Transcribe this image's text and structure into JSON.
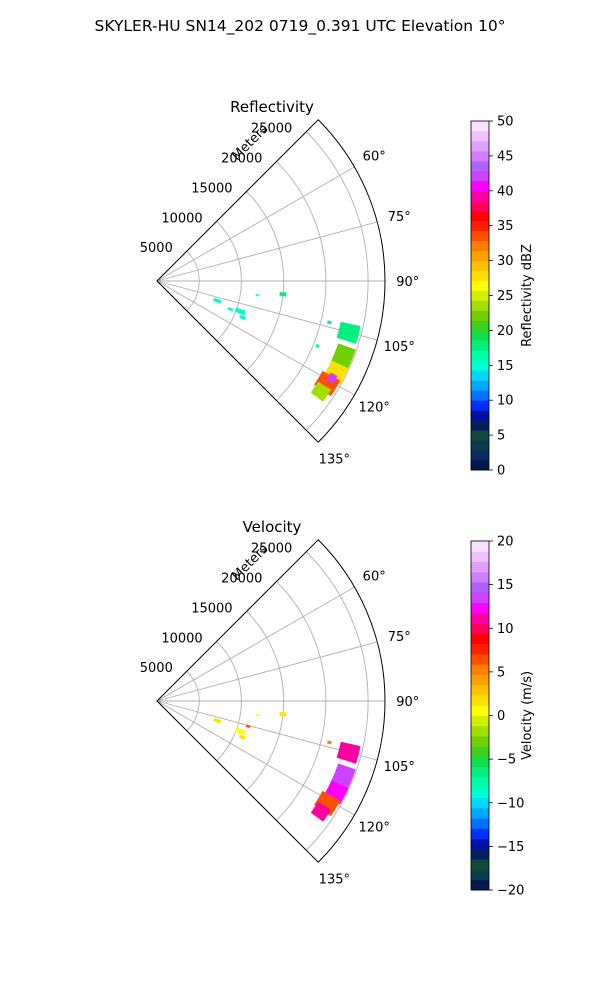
{
  "figure": {
    "suptitle": "SKYLER-HU  SN14_202  0719_0.391 UTC Elevation 10°"
  },
  "chart_data": [
    {
      "type": "polar-ppi",
      "title": "Reflectivity",
      "r_label": "Meters",
      "r_ticks": [
        5000,
        10000,
        15000,
        20000,
        25000
      ],
      "r_tick_labels": [
        "5000",
        "10000",
        "15000",
        "20000",
        "25000"
      ],
      "rmax": 27000,
      "theta_range_deg": [
        45,
        135
      ],
      "theta_ticks_deg": [
        60,
        75,
        90,
        105,
        120,
        135
      ],
      "theta_tick_labels": [
        "60°",
        "75°",
        "90°",
        "105°",
        "120°",
        "135°"
      ],
      "grid": true,
      "colorbar": {
        "label": "Reflectivity dBZ",
        "range": [
          0,
          50
        ],
        "ticks": [
          0,
          5,
          10,
          15,
          20,
          25,
          30,
          35,
          40,
          45,
          50
        ],
        "tick_labels": [
          "0",
          "5",
          "10",
          "15",
          "20",
          "25",
          "30",
          "35",
          "40",
          "45",
          "50"
        ],
        "colors": [
          "#001a4d",
          "#0a2a5c",
          "#0d3d4d",
          "#0f4a3a",
          "#06205c",
          "#0010a0",
          "#0030ff",
          "#0070ff",
          "#00a8ff",
          "#00d8ff",
          "#00ffd0",
          "#00ffa8",
          "#00f080",
          "#10e050",
          "#40d020",
          "#70d000",
          "#a0e000",
          "#d0f000",
          "#ffff00",
          "#ffe000",
          "#ffc000",
          "#ffa000",
          "#ff8000",
          "#ff5000",
          "#ff2000",
          "#ff0000",
          "#ff0060",
          "#ff00a0",
          "#ff00ff",
          "#d040ff",
          "#b060ff",
          "#d080ff",
          "#e0a0ff",
          "#f0c0ff",
          "#f8e0ff"
        ]
      },
      "echoes": [
        {
          "theta": 108.0,
          "r": 7500,
          "dr": 900,
          "dth": 3.0,
          "value": 15
        },
        {
          "theta": 110.0,
          "r": 10500,
          "dr": 1200,
          "dth": 3.0,
          "value": 15
        },
        {
          "theta": 113.0,
          "r": 11000,
          "dr": 700,
          "dth": 2.0,
          "value": 15
        },
        {
          "theta": 111.0,
          "r": 9300,
          "dr": 600,
          "dth": 2.0,
          "value": 15
        },
        {
          "theta": 96.0,
          "r": 15000,
          "dr": 800,
          "dth": 1.8,
          "value": 18
        },
        {
          "theta": 98.0,
          "r": 12000,
          "dr": 400,
          "dth": 1.0,
          "value": 15
        },
        {
          "theta": 103.5,
          "r": 21000,
          "dr": 500,
          "dth": 1.0,
          "value": 14
        },
        {
          "theta": 105.0,
          "r": 23500,
          "dr": 2400,
          "dth": 5.0,
          "value": 18
        },
        {
          "theta": 112.0,
          "r": 23800,
          "dr": 2200,
          "dth": 6.0,
          "value": 22
        },
        {
          "theta": 117.0,
          "r": 23800,
          "dr": 2200,
          "dth": 5.0,
          "value": 28
        },
        {
          "theta": 121.0,
          "r": 23500,
          "dr": 2400,
          "dth": 5.0,
          "value": 33
        },
        {
          "theta": 119.0,
          "r": 23700,
          "dr": 900,
          "dth": 2.5,
          "value": 42
        },
        {
          "theta": 124.0,
          "r": 23400,
          "dr": 1800,
          "dth": 4.0,
          "value": 24
        },
        {
          "theta": 112.0,
          "r": 20500,
          "dr": 400,
          "dth": 1.0,
          "value": 16
        }
      ]
    },
    {
      "type": "polar-ppi",
      "title": "Velocity",
      "r_label": "Meters",
      "r_ticks": [
        5000,
        10000,
        15000,
        20000,
        25000
      ],
      "r_tick_labels": [
        "5000",
        "10000",
        "15000",
        "20000",
        "25000"
      ],
      "rmax": 27000,
      "theta_range_deg": [
        45,
        135
      ],
      "theta_ticks_deg": [
        60,
        75,
        90,
        105,
        120,
        135
      ],
      "theta_tick_labels": [
        "60°",
        "75°",
        "90°",
        "105°",
        "120°",
        "135°"
      ],
      "grid": true,
      "colorbar": {
        "label": "Velocity (m/s)",
        "range": [
          -20,
          20
        ],
        "ticks": [
          -20,
          -15,
          -10,
          -5,
          0,
          5,
          10,
          15,
          20
        ],
        "tick_labels": [
          "−20",
          "−15",
          "−10",
          "−5",
          "0",
          "5",
          "10",
          "15",
          "20"
        ],
        "colors": [
          "#001a4d",
          "#0d3d4d",
          "#0f4a3a",
          "#06205c",
          "#0010a0",
          "#0030ff",
          "#0070ff",
          "#00a8ff",
          "#00d8ff",
          "#00ffd0",
          "#00ffa8",
          "#00f080",
          "#10e050",
          "#40d020",
          "#70d000",
          "#a0e000",
          "#d0f000",
          "#ffff00",
          "#ffe000",
          "#ffc000",
          "#ffa000",
          "#ff8000",
          "#ff5000",
          "#ff2000",
          "#ff0000",
          "#ff0060",
          "#ff00a0",
          "#ff00ff",
          "#d040ff",
          "#b060ff",
          "#d080ff",
          "#e0a0ff",
          "#f0c0ff",
          "#f8e0ff"
        ]
      },
      "echoes": [
        {
          "theta": 108.0,
          "r": 7500,
          "dr": 900,
          "dth": 3.0,
          "value": 2
        },
        {
          "theta": 110.0,
          "r": 10500,
          "dr": 1200,
          "dth": 3.0,
          "value": 1
        },
        {
          "theta": 113.0,
          "r": 11000,
          "dr": 700,
          "dth": 2.0,
          "value": 2
        },
        {
          "theta": 105.5,
          "r": 11200,
          "dr": 500,
          "dth": 1.5,
          "value": 6
        },
        {
          "theta": 96.0,
          "r": 15000,
          "dr": 800,
          "dth": 1.8,
          "value": 2
        },
        {
          "theta": 98.0,
          "r": 12000,
          "dr": 400,
          "dth": 1.0,
          "value": 1
        },
        {
          "theta": 103.5,
          "r": 21000,
          "dr": 500,
          "dth": 1.0,
          "value": 5
        },
        {
          "theta": 105.0,
          "r": 23500,
          "dr": 2400,
          "dth": 5.0,
          "value": 11
        },
        {
          "theta": 112.0,
          "r": 23800,
          "dr": 2200,
          "dth": 6.0,
          "value": 13
        },
        {
          "theta": 117.0,
          "r": 23800,
          "dr": 2200,
          "dth": 5.0,
          "value": 12
        },
        {
          "theta": 121.0,
          "r": 23500,
          "dr": 2400,
          "dth": 5.0,
          "value": 7
        },
        {
          "theta": 124.0,
          "r": 23400,
          "dr": 1800,
          "dth": 4.0,
          "value": 11
        }
      ]
    }
  ]
}
